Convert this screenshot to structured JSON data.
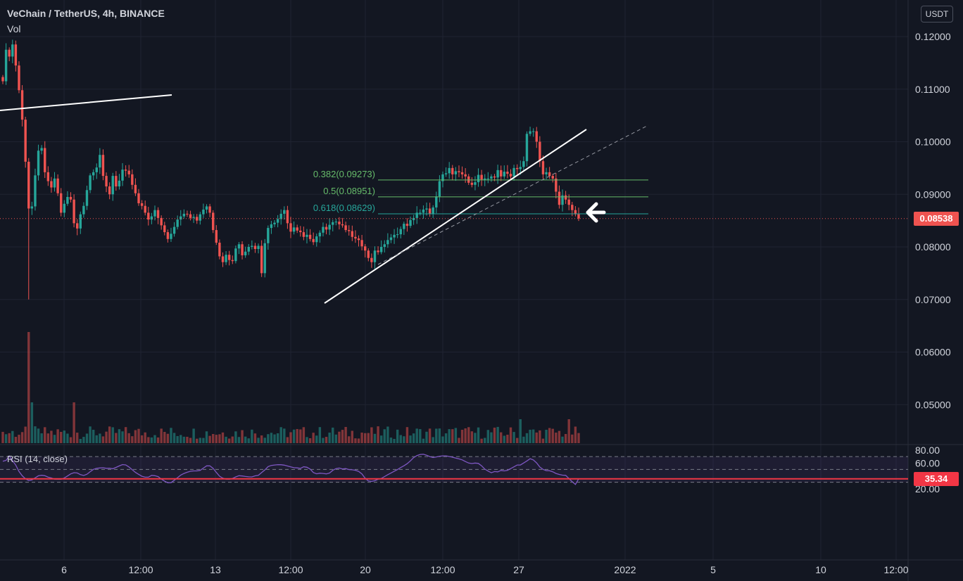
{
  "header": {
    "symbol": "VeChain / TetherUS, 4h, BINANCE",
    "volume_label": "Vol",
    "currency_button": "USDT"
  },
  "rsi": {
    "label": "RSI (14, close)",
    "current_value": "35.34",
    "upper_band": 70,
    "middle_band": 50,
    "lower_band": 30
  },
  "current_price": "0.08538",
  "colors": {
    "background": "#131722",
    "up": "#26a69a",
    "down": "#ef5350",
    "rsi_line": "#7e57c2",
    "rsi_marker": "#f23645",
    "fib_green": "#66bb6a",
    "fib_teal": "#26a69a"
  },
  "fibonacci": [
    {
      "label": "0.382(0.09273)",
      "level": 0.382,
      "price": 0.09273
    },
    {
      "label": "0.5(0.08951)",
      "level": 0.5,
      "price": 0.08951
    },
    {
      "label": "0.618(0.08629)",
      "level": 0.618,
      "price": 0.08629
    }
  ],
  "annotations": {
    "arrow": "left-arrow-icon"
  },
  "chart_data": {
    "type": "candlestick",
    "price_axis_ticks": [
      "0.12000",
      "0.11000",
      "0.10000",
      "0.09000",
      "0.08000",
      "0.07000",
      "0.06000",
      "0.05000"
    ],
    "rsi_axis_ticks": [
      "80.00",
      "60.00",
      "40.00",
      "20.00"
    ],
    "time_axis_ticks": [
      "6",
      "12:00",
      "13",
      "12:00",
      "20",
      "12:00",
      "27",
      "2022",
      "5",
      "10",
      "12:00"
    ],
    "price_ylim": [
      0.045,
      0.125
    ],
    "rsi_ylim": [
      17,
      83
    ],
    "close_series": [
      0.1115,
      0.1175,
      0.1162,
      0.1185,
      0.1145,
      0.1098,
      0.1042,
      0.0962,
      0.0873,
      0.0877,
      0.0936,
      0.0983,
      0.0988,
      0.0942,
      0.0925,
      0.0913,
      0.093,
      0.0902,
      0.0865,
      0.0882,
      0.0895,
      0.089,
      0.0845,
      0.0835,
      0.0862,
      0.0878,
      0.0908,
      0.0936,
      0.0942,
      0.0951,
      0.0975,
      0.0935,
      0.0915,
      0.09,
      0.0935,
      0.0915,
      0.0926,
      0.0947,
      0.0945,
      0.0938,
      0.0918,
      0.0902,
      0.0883,
      0.0878,
      0.0865,
      0.0852,
      0.0858,
      0.087,
      0.0855,
      0.0841,
      0.0828,
      0.0815,
      0.0825,
      0.0838,
      0.0852,
      0.0858,
      0.0863,
      0.0862,
      0.0855,
      0.0857,
      0.085,
      0.0862,
      0.0871,
      0.0877,
      0.0865,
      0.0832,
      0.0808,
      0.0782,
      0.0771,
      0.0785,
      0.0775,
      0.0773,
      0.0797,
      0.0805,
      0.0784,
      0.0791,
      0.08,
      0.0802,
      0.0796,
      0.0802,
      0.075,
      0.0807,
      0.0836,
      0.0843,
      0.0846,
      0.0853,
      0.0863,
      0.087,
      0.0845,
      0.0829,
      0.0837,
      0.0831,
      0.0828,
      0.0819,
      0.0823,
      0.0815,
      0.0809,
      0.082,
      0.0827,
      0.0838,
      0.0833,
      0.0842,
      0.0847,
      0.0848,
      0.0843,
      0.0841,
      0.0832,
      0.083,
      0.0819,
      0.0816,
      0.0813,
      0.0801,
      0.0793,
      0.0779,
      0.0771,
      0.0793,
      0.079,
      0.08,
      0.0805,
      0.0813,
      0.0818,
      0.0823,
      0.0824,
      0.0834,
      0.0844,
      0.084,
      0.0851,
      0.0855,
      0.0865,
      0.0865,
      0.0871,
      0.0873,
      0.0863,
      0.0875,
      0.0896,
      0.0925,
      0.0938,
      0.094,
      0.095,
      0.0938,
      0.0944,
      0.0942,
      0.0938,
      0.0934,
      0.0922,
      0.0918,
      0.0923,
      0.0937,
      0.0928,
      0.093,
      0.093,
      0.0934,
      0.0932,
      0.0946,
      0.0934,
      0.0943,
      0.0939,
      0.0934,
      0.095,
      0.0948,
      0.0952,
      0.0963,
      0.1015,
      0.102,
      0.102,
      0.1,
      0.0963,
      0.0938,
      0.0942,
      0.0935,
      0.093,
      0.0905,
      0.088,
      0.0898,
      0.089,
      0.088,
      0.087,
      0.0862,
      0.0854
    ],
    "current_price": 0.08538
  }
}
